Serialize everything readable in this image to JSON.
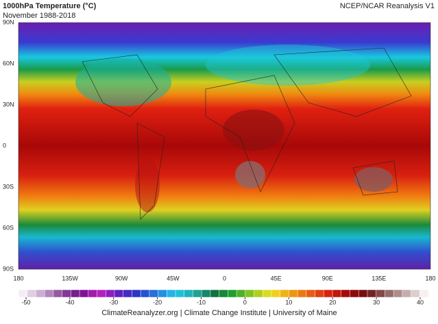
{
  "header": {
    "title": "1000hPa Temperature (°C)",
    "subtitle": "November 1988-2018",
    "source": "NCEP/NCAR Reanalysis V1"
  },
  "map": {
    "lat_labels": [
      "90N",
      "60N",
      "30N",
      "0",
      "30S",
      "60S",
      "90S"
    ],
    "lon_labels": [
      "180",
      "135W",
      "90W",
      "45W",
      "0",
      "45E",
      "90E",
      "135E",
      "180"
    ]
  },
  "colorbar": {
    "ticks": [
      -50,
      -40,
      -30,
      -20,
      -10,
      0,
      10,
      20,
      30,
      40
    ]
  },
  "footer": "ClimateReanalyzer.org | Climate Change Institute | University of Maine"
}
